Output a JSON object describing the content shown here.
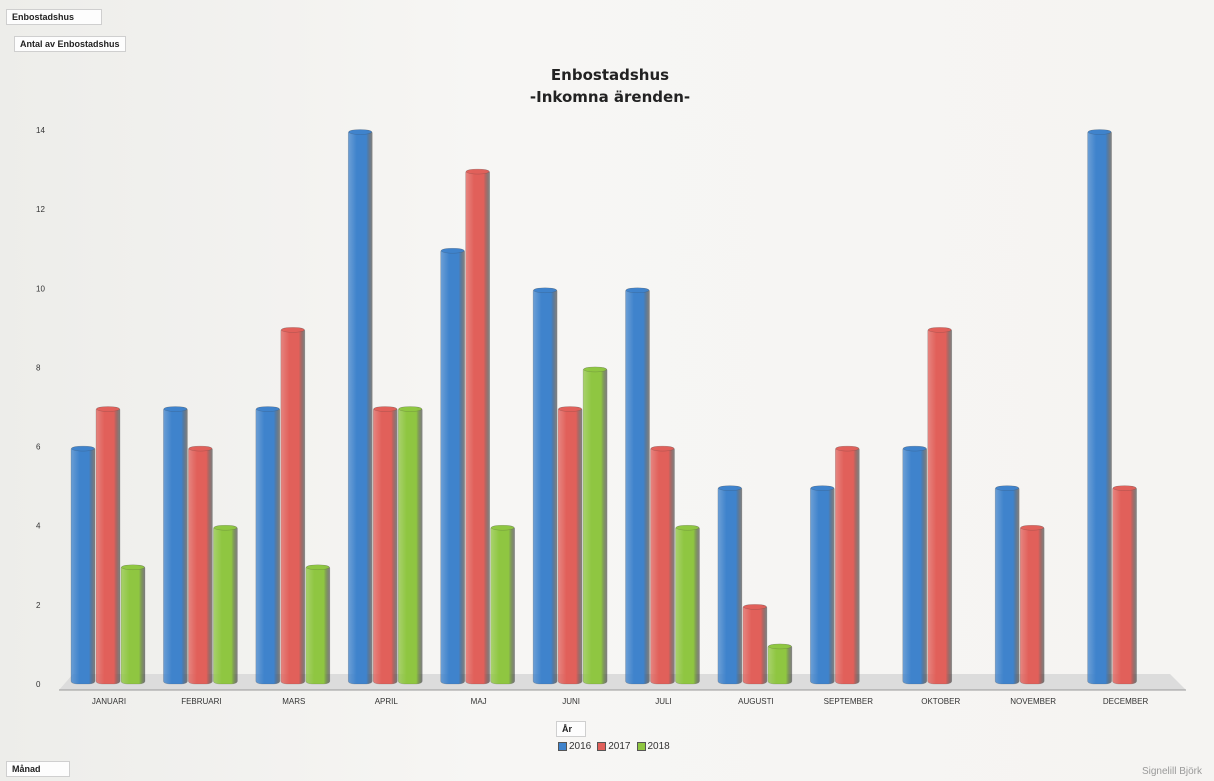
{
  "filter_field": "Enbostadshus",
  "values_field": "Antal av Enbostadshus",
  "axis_field": "Månad",
  "legend_field": "År",
  "author": "Signelill Björk",
  "colors": {
    "2016": "#3f83cc",
    "2017": "#e1605a",
    "2018": "#8fc641"
  },
  "chart_data": {
    "type": "bar",
    "title": "Enbostadshus",
    "subtitle": "-Inkomna ärenden-",
    "xlabel": "",
    "ylabel": "",
    "ylim": [
      0,
      14
    ],
    "yticks": [
      0,
      2,
      4,
      6,
      8,
      10,
      12,
      14
    ],
    "grid": false,
    "legend_position": "bottom",
    "categories": [
      "JANUARI",
      "FEBRUARI",
      "MARS",
      "APRIL",
      "MAJ",
      "JUNI",
      "JULI",
      "AUGUSTI",
      "SEPTEMBER",
      "OKTOBER",
      "NOVEMBER",
      "DECEMBER"
    ],
    "series": [
      {
        "name": "2016",
        "values": [
          6,
          7,
          7,
          14,
          11,
          10,
          10,
          5,
          5,
          6,
          5,
          14
        ]
      },
      {
        "name": "2017",
        "values": [
          7,
          6,
          9,
          7,
          13,
          7,
          6,
          2,
          6,
          9,
          4,
          5
        ]
      },
      {
        "name": "2018",
        "values": [
          3,
          4,
          3,
          7,
          4,
          8,
          4,
          1,
          null,
          null,
          null,
          null
        ]
      }
    ]
  }
}
